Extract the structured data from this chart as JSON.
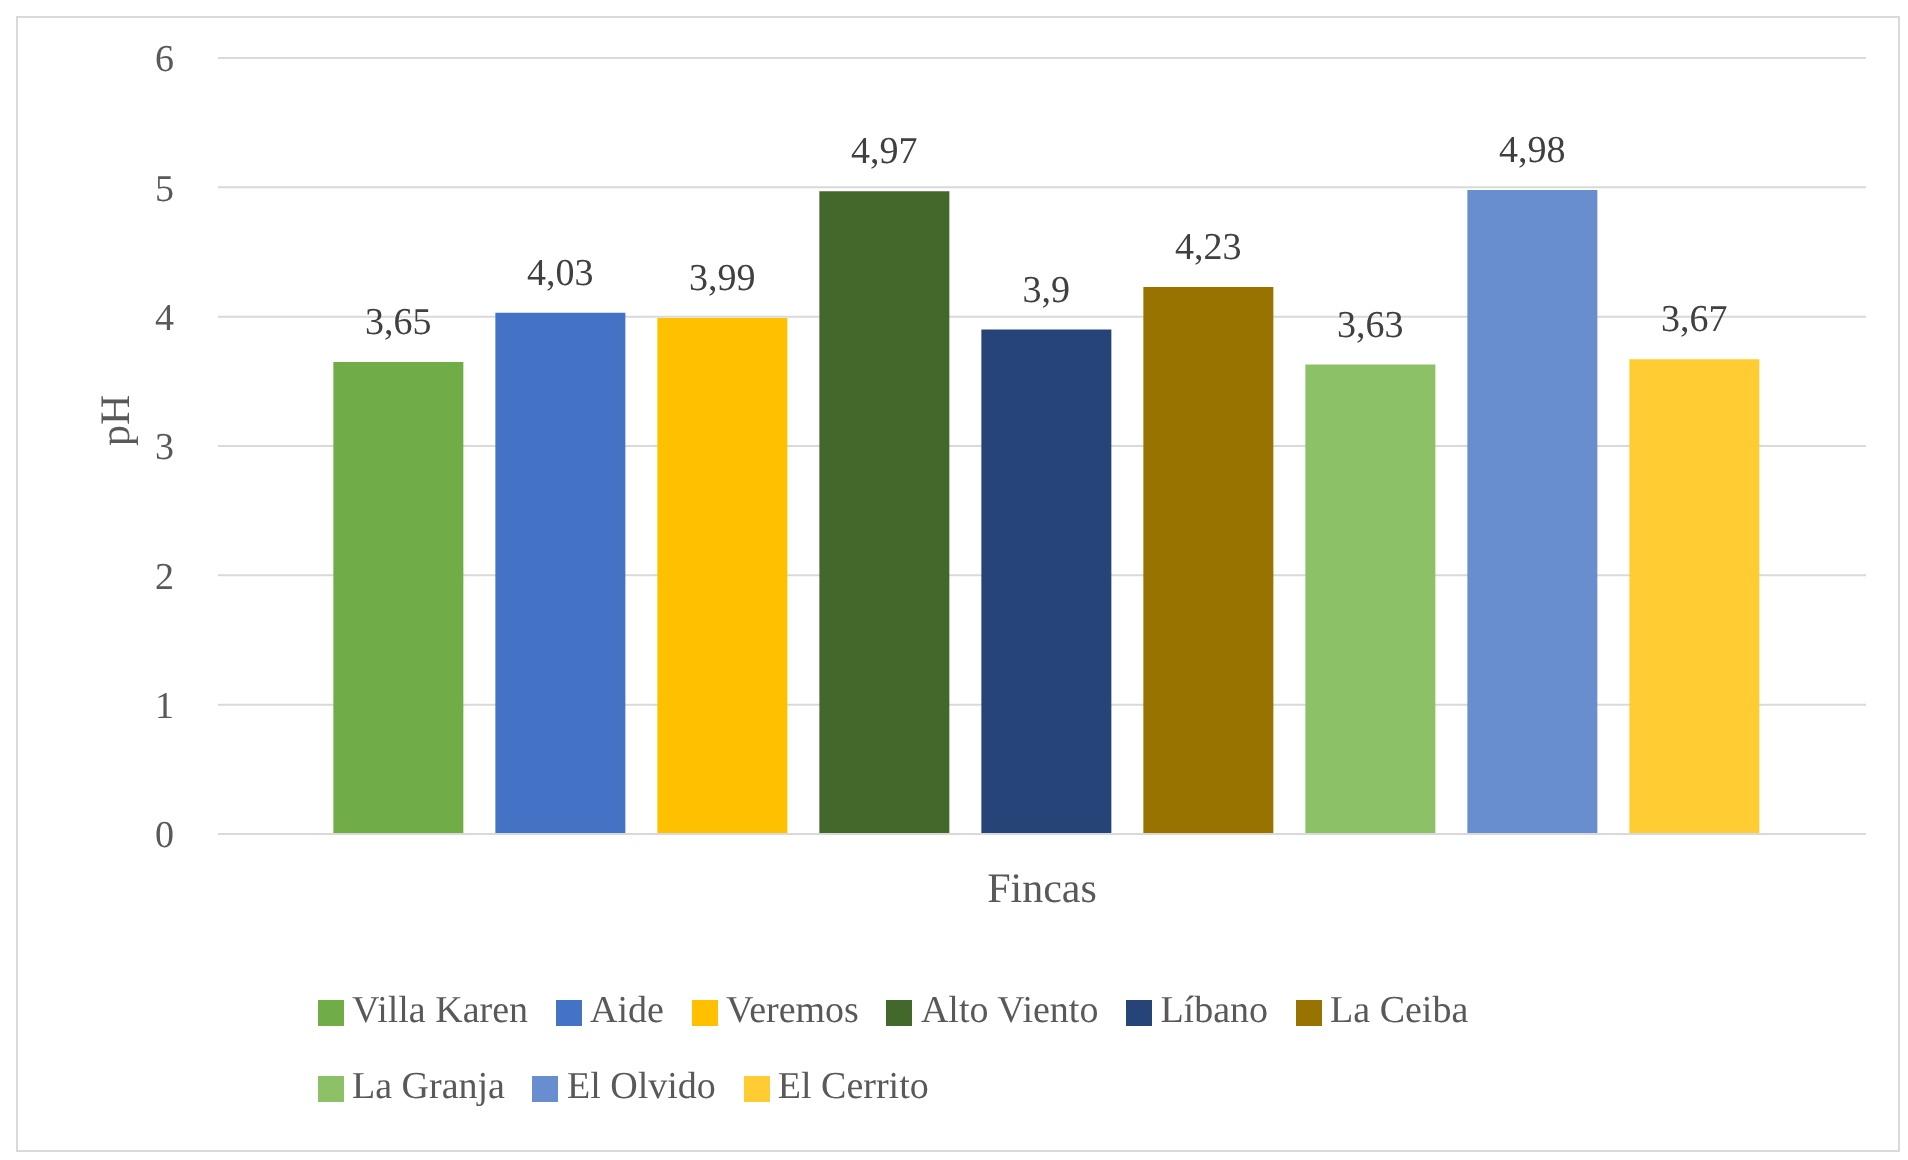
{
  "chart_data": {
    "type": "bar",
    "xlabel": "Fincas",
    "ylabel": "pH",
    "categories": [
      null
    ],
    "ylim": [
      0,
      6
    ],
    "yticks": [
      0,
      1,
      2,
      3,
      4,
      5,
      6
    ],
    "grid": "y",
    "legend": "bottom",
    "series": [
      {
        "name": "Villa Karen",
        "color": "#70ad47",
        "values": [
          3.65
        ],
        "value_labels": [
          "3,65"
        ]
      },
      {
        "name": "Aide",
        "color": "#4472c4",
        "values": [
          4.03
        ],
        "value_labels": [
          "4,03"
        ]
      },
      {
        "name": "Veremos",
        "color": "#ffc000",
        "values": [
          3.99
        ],
        "value_labels": [
          "3,99"
        ]
      },
      {
        "name": "Alto Viento",
        "color": "#43682b",
        "values": [
          4.97
        ],
        "value_labels": [
          "4,97"
        ]
      },
      {
        "name": "Líbano",
        "color": "#264478",
        "values": [
          3.9
        ],
        "value_labels": [
          "3,9"
        ]
      },
      {
        "name": "La Ceiba",
        "color": "#997300",
        "values": [
          4.23
        ],
        "value_labels": [
          "4,23"
        ]
      },
      {
        "name": "La Granja",
        "color": "#8cc168",
        "values": [
          3.63
        ],
        "value_labels": [
          "3,63"
        ]
      },
      {
        "name": "El Olvido",
        "color": "#698ed0",
        "values": [
          4.98
        ],
        "value_labels": [
          "4,98"
        ]
      },
      {
        "name": "El Cerrito",
        "color": "#ffcd33",
        "values": [
          3.67
        ],
        "value_labels": [
          "3,67"
        ]
      }
    ]
  }
}
